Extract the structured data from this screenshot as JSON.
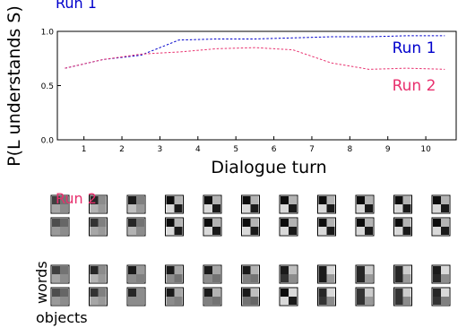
{
  "chart_data": {
    "type": "line",
    "ylabel": "P(L understands S)",
    "xlabel": "Dialogue turn",
    "xlim": [
      0.3,
      10.8
    ],
    "ylim": [
      0.0,
      1.0
    ],
    "x_ticks": [
      "1",
      "2",
      "3",
      "4",
      "5",
      "6",
      "7",
      "8",
      "9",
      "10"
    ],
    "y_ticks": [
      "0.0",
      "0.5",
      "1.0"
    ],
    "grid": false,
    "x": [
      0.5,
      1.5,
      2.5,
      3.5,
      4.5,
      5.5,
      6.5,
      7.5,
      8.5,
      9.5,
      10.5
    ],
    "series": [
      {
        "name": "Run 1",
        "color": "#0000cc",
        "line_style": "dashed",
        "values": [
          0.66,
          0.74,
          0.78,
          0.92,
          0.93,
          0.93,
          0.94,
          0.95,
          0.95,
          0.96,
          0.96
        ]
      },
      {
        "name": "Run 2",
        "color": "#e8306e",
        "line_style": "dashed",
        "values": [
          0.66,
          0.74,
          0.79,
          0.81,
          0.84,
          0.85,
          0.83,
          0.71,
          0.65,
          0.66,
          0.65
        ]
      }
    ]
  },
  "matrix_panels": {
    "row_labels": {
      "words": "words",
      "objects": "objects"
    },
    "runs": [
      {
        "label": "Run 1",
        "color": "#0000cc",
        "words": [
          [
            [
              0.25,
              0.45
            ],
            [
              0.65,
              0.55
            ]
          ],
          [
            [
              0.15,
              0.55
            ],
            [
              0.7,
              0.6
            ]
          ],
          [
            [
              0.1,
              0.5
            ],
            [
              0.75,
              0.6
            ]
          ],
          [
            [
              0.05,
              0.7
            ],
            [
              0.85,
              0.1
            ]
          ],
          [
            [
              0.05,
              0.7
            ],
            [
              0.85,
              0.1
            ]
          ],
          [
            [
              0.05,
              0.7
            ],
            [
              0.85,
              0.1
            ]
          ],
          [
            [
              0.05,
              0.7
            ],
            [
              0.85,
              0.1
            ]
          ],
          [
            [
              0.05,
              0.7
            ],
            [
              0.85,
              0.1
            ]
          ],
          [
            [
              0.05,
              0.7
            ],
            [
              0.85,
              0.1
            ]
          ],
          [
            [
              0.05,
              0.7
            ],
            [
              0.85,
              0.1
            ]
          ],
          [
            [
              0.05,
              0.7
            ],
            [
              0.85,
              0.1
            ]
          ]
        ],
        "objects": [
          [
            [
              0.3,
              0.4
            ],
            [
              0.6,
              0.55
            ]
          ],
          [
            [
              0.2,
              0.5
            ],
            [
              0.65,
              0.6
            ]
          ],
          [
            [
              0.15,
              0.45
            ],
            [
              0.7,
              0.55
            ]
          ],
          [
            [
              0.05,
              0.7
            ],
            [
              0.85,
              0.1
            ]
          ],
          [
            [
              0.05,
              0.7
            ],
            [
              0.85,
              0.1
            ]
          ],
          [
            [
              0.05,
              0.7
            ],
            [
              0.85,
              0.1
            ]
          ],
          [
            [
              0.05,
              0.7
            ],
            [
              0.85,
              0.1
            ]
          ],
          [
            [
              0.05,
              0.7
            ],
            [
              0.85,
              0.1
            ]
          ],
          [
            [
              0.05,
              0.7
            ],
            [
              0.85,
              0.1
            ]
          ],
          [
            [
              0.05,
              0.7
            ],
            [
              0.85,
              0.1
            ]
          ],
          [
            [
              0.05,
              0.7
            ],
            [
              0.85,
              0.1
            ]
          ]
        ]
      },
      {
        "label": "Run 2",
        "color": "#e8306e",
        "words": [
          [
            [
              0.25,
              0.45
            ],
            [
              0.65,
              0.55
            ]
          ],
          [
            [
              0.15,
              0.55
            ],
            [
              0.7,
              0.6
            ]
          ],
          [
            [
              0.1,
              0.6
            ],
            [
              0.55,
              0.5
            ]
          ],
          [
            [
              0.1,
              0.65
            ],
            [
              0.55,
              0.45
            ]
          ],
          [
            [
              0.1,
              0.65
            ],
            [
              0.55,
              0.45
            ]
          ],
          [
            [
              0.1,
              0.7
            ],
            [
              0.5,
              0.45
            ]
          ],
          [
            [
              0.1,
              0.75
            ],
            [
              0.2,
              0.55
            ]
          ],
          [
            [
              0.1,
              0.85
            ],
            [
              0.1,
              0.6
            ]
          ],
          [
            [
              0.15,
              0.8
            ],
            [
              0.15,
              0.6
            ]
          ],
          [
            [
              0.15,
              0.8
            ],
            [
              0.15,
              0.6
            ]
          ],
          [
            [
              0.1,
              0.85
            ],
            [
              0.15,
              0.55
            ]
          ]
        ],
        "objects": [
          [
            [
              0.3,
              0.4
            ],
            [
              0.6,
              0.55
            ]
          ],
          [
            [
              0.2,
              0.5
            ],
            [
              0.65,
              0.6
            ]
          ],
          [
            [
              0.15,
              0.55
            ],
            [
              0.55,
              0.55
            ]
          ],
          [
            [
              0.1,
              0.65
            ],
            [
              0.55,
              0.5
            ]
          ],
          [
            [
              0.1,
              0.7
            ],
            [
              0.5,
              0.45
            ]
          ],
          [
            [
              0.1,
              0.75
            ],
            [
              0.45,
              0.4
            ]
          ],
          [
            [
              0.05,
              0.85
            ],
            [
              0.85,
              0.1
            ]
          ],
          [
            [
              0.15,
              0.85
            ],
            [
              0.2,
              0.55
            ]
          ],
          [
            [
              0.2,
              0.8
            ],
            [
              0.2,
              0.6
            ]
          ],
          [
            [
              0.2,
              0.8
            ],
            [
              0.2,
              0.55
            ]
          ],
          [
            [
              0.15,
              0.85
            ],
            [
              0.2,
              0.5
            ]
          ]
        ]
      }
    ]
  }
}
